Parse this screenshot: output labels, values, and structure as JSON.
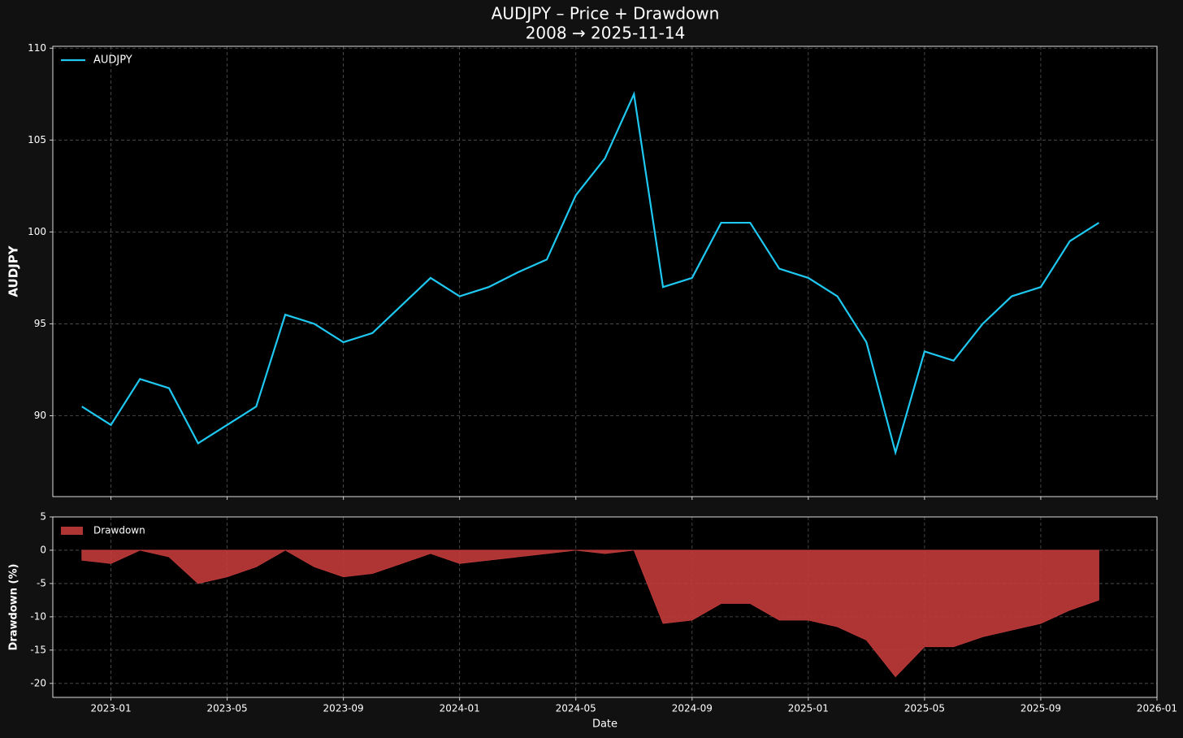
{
  "chart_data": [
    {
      "type": "line",
      "title": "AUDJPY – Price + Drawdown",
      "subtitle": "2008 → 2025-11-14",
      "ylabel": "AUDJPY",
      "legend": "upper left",
      "grid": true,
      "x": [
        "2022-12",
        "2023-01",
        "2023-02",
        "2023-03",
        "2023-04",
        "2023-05",
        "2023-06",
        "2023-07",
        "2023-08",
        "2023-09",
        "2023-10",
        "2023-11",
        "2023-12",
        "2024-01",
        "2024-02",
        "2024-03",
        "2024-04",
        "2024-05",
        "2024-06",
        "2024-07",
        "2024-08",
        "2024-09",
        "2024-10",
        "2024-11",
        "2024-12",
        "2025-01",
        "2025-02",
        "2025-03",
        "2025-04",
        "2025-05",
        "2025-06",
        "2025-07",
        "2025-08",
        "2025-09",
        "2025-10",
        "2025-11"
      ],
      "series": [
        {
          "name": "AUDJPY",
          "color": "#1ec8f0",
          "values": [
            90.5,
            89.5,
            92.0,
            91.5,
            88.5,
            89.5,
            90.5,
            95.5,
            95.0,
            94.0,
            94.5,
            96.0,
            97.5,
            96.5,
            97.0,
            97.8,
            98.5,
            102.0,
            104.0,
            107.5,
            97.0,
            97.5,
            100.5,
            100.5,
            98.0,
            97.5,
            96.5,
            94.0,
            88.0,
            93.5,
            93.0,
            95.0,
            96.5,
            97.0,
            99.5,
            100.5
          ]
        }
      ],
      "xlim": [
        "2022-11",
        "2026-01"
      ],
      "xticks": [
        "2023-01",
        "2023-05",
        "2023-09",
        "2024-01",
        "2024-05",
        "2024-09",
        "2025-01",
        "2025-05",
        "2025-09",
        "2026-01"
      ],
      "ylim": [
        85.6,
        110.1
      ],
      "yticks": [
        90,
        95,
        100,
        105,
        110
      ]
    },
    {
      "type": "area",
      "ylabel": "Drawdown (%)",
      "xlabel": "Date",
      "legend": "upper left",
      "grid": true,
      "x": [
        "2022-12",
        "2023-01",
        "2023-02",
        "2023-03",
        "2023-04",
        "2023-05",
        "2023-06",
        "2023-07",
        "2023-08",
        "2023-09",
        "2023-10",
        "2023-11",
        "2023-12",
        "2024-01",
        "2024-02",
        "2024-03",
        "2024-04",
        "2024-05",
        "2024-06",
        "2024-07",
        "2024-08",
        "2024-09",
        "2024-10",
        "2024-11",
        "2024-12",
        "2025-01",
        "2025-02",
        "2025-03",
        "2025-04",
        "2025-05",
        "2025-06",
        "2025-07",
        "2025-08",
        "2025-09",
        "2025-10",
        "2025-11"
      ],
      "series": [
        {
          "name": "Drawdown",
          "color": "#c23b3b",
          "values": [
            -1.5,
            -2,
            0,
            -1,
            -5,
            -4,
            -2.5,
            0,
            -2.5,
            -4,
            -3.5,
            -2,
            -0.5,
            -2,
            -1.5,
            -1,
            -0.5,
            0,
            -0.5,
            0,
            -11,
            -10.5,
            -8,
            -8,
            -10.5,
            -10.5,
            -11.5,
            -13.5,
            -19,
            -14.5,
            -14.5,
            -13,
            -12,
            -11,
            -9,
            -7.5
          ]
        }
      ],
      "xlim": [
        "2022-11",
        "2026-01"
      ],
      "xticks": [
        "2023-01",
        "2023-05",
        "2023-09",
        "2024-01",
        "2024-05",
        "2024-09",
        "2025-01",
        "2025-05",
        "2025-09",
        "2026-01"
      ],
      "ylim": [
        -22.1,
        5
      ],
      "yticks": [
        -20,
        -15,
        -10,
        -5,
        0,
        5
      ]
    }
  ]
}
